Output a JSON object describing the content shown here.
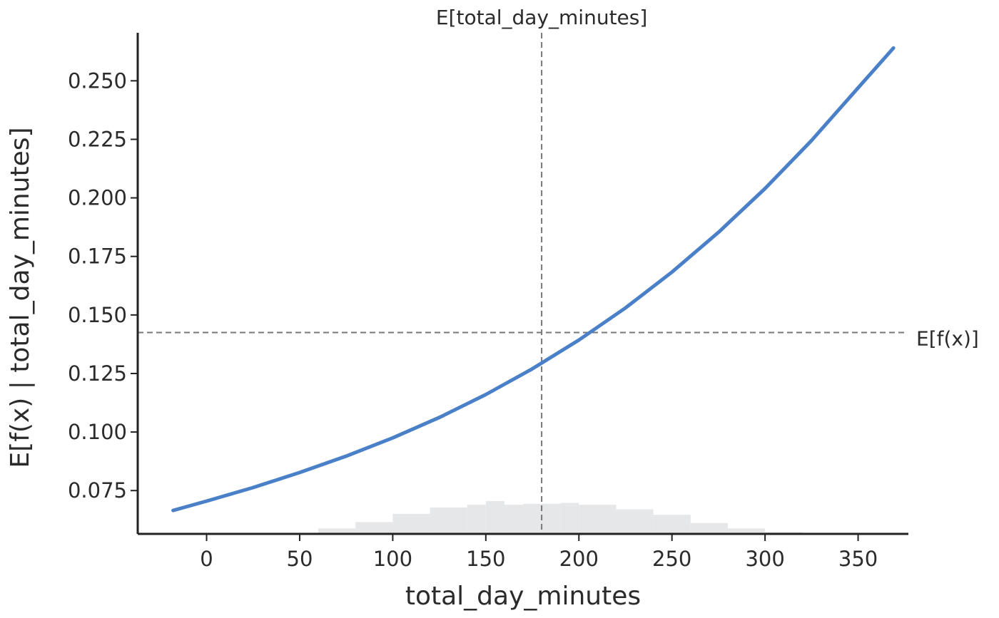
{
  "chart_data": {
    "type": "line",
    "title": "E[total_day_minutes]",
    "xlabel": "total_day_minutes",
    "ylabel": "E[f(x) | total_day_minutes]",
    "xlim": [
      -37,
      377
    ],
    "ylim": [
      0.0565,
      0.2705
    ],
    "x_ticks": [
      0,
      50,
      100,
      150,
      200,
      250,
      300,
      350
    ],
    "x_tick_labels": [
      "0",
      "50",
      "100",
      "150",
      "200",
      "250",
      "300",
      "350"
    ],
    "y_ticks": [
      0.075,
      0.1,
      0.125,
      0.15,
      0.175,
      0.2,
      0.225,
      0.25
    ],
    "y_tick_labels": [
      "0.075",
      "0.100",
      "0.125",
      "0.150",
      "0.175",
      "0.200",
      "0.225",
      "0.250"
    ],
    "grid": false,
    "series": [
      {
        "color": "#4a80c8",
        "x": [
          -18,
          0,
          25,
          50,
          75,
          100,
          125,
          150,
          175,
          200,
          225,
          250,
          275,
          300,
          325,
          350,
          369
        ],
        "y": [
          0.0665,
          0.0705,
          0.0763,
          0.0827,
          0.0897,
          0.0975,
          0.1062,
          0.116,
          0.127,
          0.1393,
          0.153,
          0.1683,
          0.1853,
          0.204,
          0.2245,
          0.247,
          0.264
        ]
      }
    ],
    "reference_lines": {
      "vertical": {
        "x": 180,
        "color": "#777777",
        "style": "dashed"
      },
      "horizontal": {
        "y": 0.1425,
        "label": "E[f(x)]",
        "color": "#777777",
        "style": "dashed"
      }
    },
    "histogram": {
      "color": "#e6e7e9",
      "bin_edges": [
        40,
        60,
        80,
        100,
        120,
        140,
        150,
        160,
        170,
        180,
        190,
        200,
        220,
        240,
        260,
        280,
        300,
        320,
        340
      ],
      "counts": [
        1,
        6,
        13,
        22,
        29,
        32,
        36,
        32,
        33,
        33,
        34,
        32,
        27,
        21,
        12,
        6,
        2,
        1
      ]
    }
  }
}
